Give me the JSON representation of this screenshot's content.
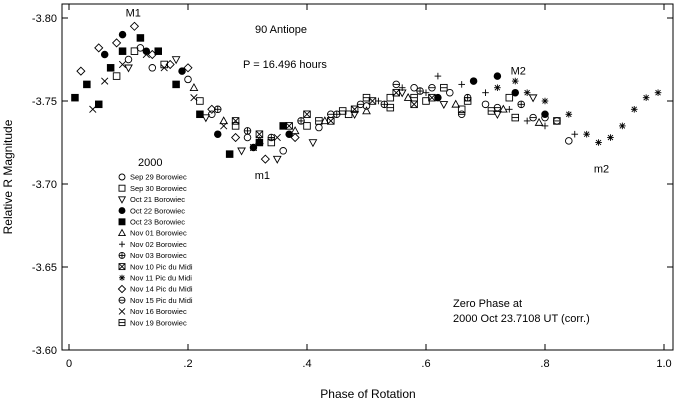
{
  "chart_data": {
    "type": "scatter",
    "title": "90 Antiope",
    "period_label": "P = 16.496 hours",
    "xlabel": "Phase of Rotation",
    "ylabel": "Relative R Magnitude",
    "xlim": [
      0,
      1.0
    ],
    "ylim": [
      -3.8,
      -3.6
    ],
    "y_inverted": true,
    "x_ticks": [
      {
        "v": 0.0,
        "label": "0"
      },
      {
        "v": 0.2,
        "label": ".2"
      },
      {
        "v": 0.4,
        "label": ".4"
      },
      {
        "v": 0.6,
        "label": ".6"
      },
      {
        "v": 0.8,
        "label": ".8"
      },
      {
        "v": 1.0,
        "label": "1.0"
      }
    ],
    "y_ticks": [
      {
        "v": -3.8,
        "label": "-3.80"
      },
      {
        "v": -3.75,
        "label": "-3.75"
      },
      {
        "v": -3.7,
        "label": "-3.70"
      },
      {
        "v": -3.65,
        "label": "-3.65"
      },
      {
        "v": -3.6,
        "label": "-3.60"
      }
    ],
    "grid": false,
    "legend_title": "2000",
    "legend_position": "left",
    "series": [
      {
        "name": "Sep 29 Borowiec",
        "marker": "circle",
        "points": [
          [
            0.1,
            -3.775
          ],
          [
            0.12,
            -3.782
          ],
          [
            0.14,
            -3.77
          ],
          [
            0.2,
            -3.763
          ],
          [
            0.24,
            -3.742
          ],
          [
            0.3,
            -3.728
          ],
          [
            0.36,
            -3.72
          ],
          [
            0.42,
            -3.734
          ],
          [
            0.5,
            -3.747
          ],
          [
            0.58,
            -3.758
          ],
          [
            0.64,
            -3.755
          ],
          [
            0.7,
            -3.748
          ],
          [
            0.8,
            -3.74
          ],
          [
            0.84,
            -3.726
          ]
        ]
      },
      {
        "name": "Sep 30 Borowiec",
        "marker": "square",
        "points": [
          [
            0.08,
            -3.765
          ],
          [
            0.11,
            -3.78
          ],
          [
            0.16,
            -3.772
          ],
          [
            0.22,
            -3.75
          ],
          [
            0.28,
            -3.735
          ],
          [
            0.34,
            -3.725
          ],
          [
            0.4,
            -3.735
          ],
          [
            0.47,
            -3.742
          ],
          [
            0.54,
            -3.752
          ],
          [
            0.6,
            -3.75
          ],
          [
            0.66,
            -3.745
          ],
          [
            0.74,
            -3.752
          ],
          [
            0.82,
            -3.738
          ]
        ]
      },
      {
        "name": "Oct 21 Borowiec",
        "marker": "triangle-down",
        "points": [
          [
            0.1,
            -3.77
          ],
          [
            0.18,
            -3.775
          ],
          [
            0.23,
            -3.74
          ],
          [
            0.29,
            -3.72
          ],
          [
            0.35,
            -3.715
          ],
          [
            0.41,
            -3.725
          ],
          [
            0.48,
            -3.742
          ],
          [
            0.56,
            -3.755
          ],
          [
            0.63,
            -3.748
          ],
          [
            0.72,
            -3.742
          ],
          [
            0.78,
            -3.752
          ]
        ]
      },
      {
        "name": "Oct 22 Borowiec",
        "marker": "circle-filled",
        "points": [
          [
            0.06,
            -3.778
          ],
          [
            0.09,
            -3.79
          ],
          [
            0.13,
            -3.78
          ],
          [
            0.19,
            -3.768
          ],
          [
            0.25,
            -3.73
          ],
          [
            0.31,
            -3.722
          ],
          [
            0.37,
            -3.73
          ],
          [
            0.62,
            -3.752
          ],
          [
            0.68,
            -3.762
          ],
          [
            0.72,
            -3.765
          ],
          [
            0.75,
            -3.755
          ],
          [
            0.8,
            -3.742
          ]
        ]
      },
      {
        "name": "Oct 23 Borowiec",
        "marker": "square-filled",
        "points": [
          [
            0.01,
            -3.752
          ],
          [
            0.03,
            -3.76
          ],
          [
            0.05,
            -3.748
          ],
          [
            0.07,
            -3.77
          ],
          [
            0.09,
            -3.78
          ],
          [
            0.12,
            -3.788
          ],
          [
            0.15,
            -3.78
          ],
          [
            0.18,
            -3.76
          ],
          [
            0.22,
            -3.742
          ],
          [
            0.27,
            -3.718
          ],
          [
            0.32,
            -3.725
          ],
          [
            0.36,
            -3.735
          ]
        ]
      },
      {
        "name": "Nov 01 Borowiec",
        "marker": "triangle-up",
        "points": [
          [
            0.21,
            -3.758
          ],
          [
            0.26,
            -3.738
          ],
          [
            0.32,
            -3.726
          ],
          [
            0.38,
            -3.732
          ],
          [
            0.43,
            -3.738
          ],
          [
            0.5,
            -3.744
          ],
          [
            0.57,
            -3.752
          ],
          [
            0.65,
            -3.748
          ],
          [
            0.73,
            -3.745
          ],
          [
            0.79,
            -3.737
          ]
        ]
      },
      {
        "name": "Nov 02 Borowiec",
        "marker": "plus",
        "points": [
          [
            0.52,
            -3.75
          ],
          [
            0.56,
            -3.758
          ],
          [
            0.6,
            -3.755
          ],
          [
            0.62,
            -3.765
          ],
          [
            0.66,
            -3.76
          ],
          [
            0.7,
            -3.755
          ],
          [
            0.74,
            -3.745
          ],
          [
            0.77,
            -3.738
          ],
          [
            0.8,
            -3.735
          ],
          [
            0.85,
            -3.73
          ]
        ]
      },
      {
        "name": "Nov 03 Borowiec",
        "marker": "circle-plus",
        "points": [
          [
            0.25,
            -3.745
          ],
          [
            0.3,
            -3.732
          ],
          [
            0.34,
            -3.728
          ],
          [
            0.39,
            -3.738
          ],
          [
            0.45,
            -3.742
          ],
          [
            0.53,
            -3.748
          ],
          [
            0.59,
            -3.756
          ],
          [
            0.67,
            -3.752
          ],
          [
            0.76,
            -3.748
          ]
        ]
      },
      {
        "name": "Nov 10 Pic du Midi",
        "marker": "square-x",
        "points": [
          [
            0.28,
            -3.738
          ],
          [
            0.32,
            -3.73
          ],
          [
            0.37,
            -3.735
          ],
          [
            0.4,
            -3.742
          ],
          [
            0.44,
            -3.738
          ],
          [
            0.48,
            -3.745
          ],
          [
            0.51,
            -3.75
          ],
          [
            0.55,
            -3.755
          ],
          [
            0.58,
            -3.748
          ],
          [
            0.61,
            -3.752
          ]
        ]
      },
      {
        "name": "Nov 11 Pic du Midi",
        "marker": "asterisk",
        "points": [
          [
            0.72,
            -3.758
          ],
          [
            0.75,
            -3.762
          ],
          [
            0.77,
            -3.755
          ],
          [
            0.8,
            -3.75
          ],
          [
            0.84,
            -3.742
          ],
          [
            0.87,
            -3.73
          ],
          [
            0.89,
            -3.725
          ],
          [
            0.91,
            -3.728
          ],
          [
            0.93,
            -3.735
          ],
          [
            0.95,
            -3.745
          ],
          [
            0.97,
            -3.752
          ],
          [
            0.99,
            -3.755
          ]
        ]
      },
      {
        "name": "Nov 14 Pic du Midi",
        "marker": "diamond",
        "points": [
          [
            0.02,
            -3.768
          ],
          [
            0.05,
            -3.782
          ],
          [
            0.08,
            -3.785
          ],
          [
            0.11,
            -3.795
          ],
          [
            0.14,
            -3.778
          ],
          [
            0.17,
            -3.772
          ],
          [
            0.2,
            -3.77
          ],
          [
            0.24,
            -3.745
          ],
          [
            0.28,
            -3.728
          ],
          [
            0.33,
            -3.715
          ],
          [
            0.38,
            -3.728
          ]
        ]
      },
      {
        "name": "Nov 15 Pic du Midi",
        "marker": "circle-minus",
        "points": [
          [
            0.44,
            -3.742
          ],
          [
            0.49,
            -3.748
          ],
          [
            0.55,
            -3.76
          ],
          [
            0.61,
            -3.758
          ],
          [
            0.66,
            -3.742
          ],
          [
            0.72,
            -3.746
          ],
          [
            0.78,
            -3.74
          ],
          [
            0.82,
            -3.738
          ]
        ]
      },
      {
        "name": "Nov 16 Borowiec",
        "marker": "x",
        "points": [
          [
            0.04,
            -3.745
          ],
          [
            0.06,
            -3.762
          ],
          [
            0.09,
            -3.772
          ],
          [
            0.13,
            -3.778
          ],
          [
            0.16,
            -3.77
          ],
          [
            0.21,
            -3.752
          ],
          [
            0.26,
            -3.735
          ],
          [
            0.31,
            -3.722
          ],
          [
            0.35,
            -3.728
          ]
        ]
      },
      {
        "name": "Nov 19 Borowiec",
        "marker": "square-minus",
        "points": [
          [
            0.42,
            -3.738
          ],
          [
            0.46,
            -3.744
          ],
          [
            0.5,
            -3.752
          ],
          [
            0.54,
            -3.746
          ],
          [
            0.58,
            -3.752
          ],
          [
            0.63,
            -3.758
          ],
          [
            0.67,
            -3.75
          ],
          [
            0.71,
            -3.744
          ],
          [
            0.75,
            -3.74
          ]
        ]
      }
    ],
    "annotations": [
      {
        "text": "M1",
        "x": 0.108,
        "y": -3.801
      },
      {
        "text": "m1",
        "x": 0.325,
        "y": -3.703
      },
      {
        "text": "M2",
        "x": 0.755,
        "y": -3.766
      },
      {
        "text": "m2",
        "x": 0.895,
        "y": -3.707
      }
    ],
    "zero_phase_note": [
      "Zero Phase at",
      "2000 Oct 23.7108 UT (corr.)"
    ]
  }
}
